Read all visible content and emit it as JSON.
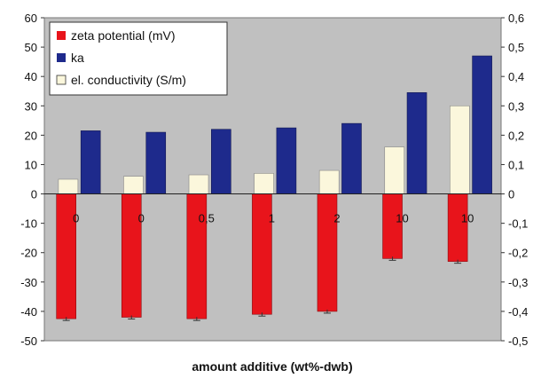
{
  "chart_data": {
    "type": "bar",
    "xlabel": "amount additive (wt%-dwb)",
    "categories": [
      "0",
      "0",
      "0,5",
      "1",
      "2",
      "10",
      "10"
    ],
    "left_axis": {
      "ylim": [
        -50,
        60
      ],
      "ticks": [
        "60",
        "50",
        "40",
        "30",
        "20",
        "10",
        "0",
        "-10",
        "-20",
        "-30",
        "-40",
        "-50"
      ]
    },
    "right_axis": {
      "ylim": [
        -0.5,
        0.6
      ],
      "ticks": [
        "0,6",
        "0,5",
        "0,4",
        "0,3",
        "0,2",
        "0,1",
        "0",
        "-0,1",
        "-0,2",
        "-0,3",
        "-0,4",
        "-0,5"
      ]
    },
    "series": [
      {
        "name": "zeta potential (mV)",
        "axis": "left",
        "color": "#e8141b",
        "values": [
          -42.5,
          -42,
          -42.5,
          -41,
          -40,
          -22,
          -23
        ]
      },
      {
        "name": "ka",
        "axis": "left",
        "color": "#1e2a8c",
        "values": [
          21.5,
          21,
          22,
          22.5,
          24,
          34.5,
          47
        ]
      },
      {
        "name": "el. conductivity (S/m)",
        "axis": "right",
        "color": "#fbf7dc",
        "values": [
          0.05,
          0.06,
          0.065,
          0.07,
          0.08,
          0.16,
          0.3
        ]
      }
    ],
    "legend_position": "top-left",
    "plot_background": "#c0c0c0",
    "grid": false
  }
}
